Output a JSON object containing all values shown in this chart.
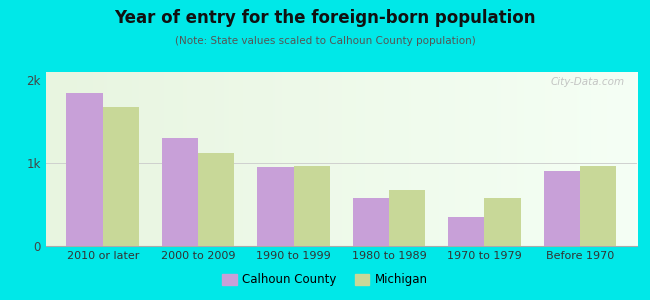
{
  "title": "Year of entry for the foreign-born population",
  "subtitle": "(Note: State values scaled to Calhoun County population)",
  "categories": [
    "2010 or later",
    "2000 to 2009",
    "1990 to 1999",
    "1980 to 1989",
    "1970 to 1979",
    "Before 1970"
  ],
  "calhoun_values": [
    1850,
    1300,
    950,
    575,
    350,
    900
  ],
  "michigan_values": [
    1680,
    1120,
    970,
    680,
    575,
    960
  ],
  "calhoun_color": "#c8a0d8",
  "michigan_color": "#c8d898",
  "background_color": "#00e8e8",
  "plot_bg_color": "#e8f5e0",
  "ylim": [
    0,
    2100
  ],
  "yticks": [
    0,
    1000,
    2000
  ],
  "ytick_labels": [
    "0",
    "1k",
    "2k"
  ],
  "bar_width": 0.38,
  "legend_labels": [
    "Calhoun County",
    "Michigan"
  ],
  "watermark": "City-Data.com"
}
